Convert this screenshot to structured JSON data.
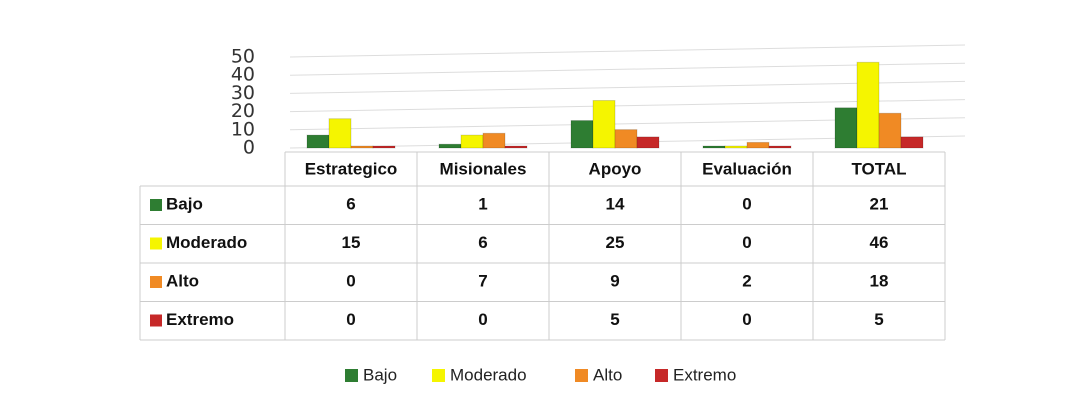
{
  "chart_data": {
    "type": "bar",
    "categories": [
      "Estrategico",
      "Misionales",
      "Apoyo",
      "Evaluación",
      "TOTAL"
    ],
    "series": [
      {
        "name": "Bajo",
        "color": "#2e7d32",
        "values": [
          6,
          1,
          14,
          0,
          21
        ]
      },
      {
        "name": "Moderado",
        "color": "#f5f500",
        "values": [
          15,
          6,
          25,
          0,
          46
        ]
      },
      {
        "name": "Alto",
        "color": "#f08a24",
        "values": [
          0,
          7,
          9,
          2,
          18
        ]
      },
      {
        "name": "Extremo",
        "color": "#c62828",
        "values": [
          0,
          0,
          5,
          0,
          5
        ]
      }
    ],
    "ylim": [
      0,
      50
    ],
    "yticks": [
      0,
      10,
      20,
      30,
      40,
      50
    ],
    "grid": true,
    "legend": "bottom"
  }
}
